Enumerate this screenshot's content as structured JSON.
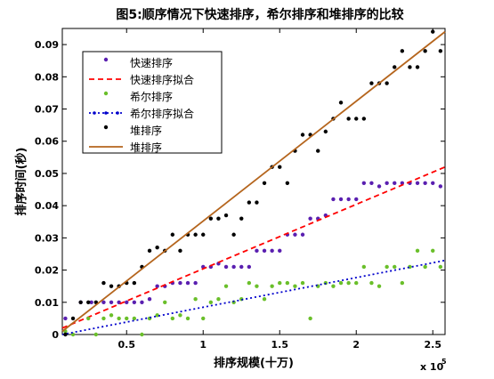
{
  "chart_data": {
    "type": "scatter",
    "title": "图5:顺序情况下快速排序，希尔排序和堆排序的比较",
    "xlabel": "排序规模(十万)",
    "ylabel": "排序时间(秒)",
    "x_exponent_label": "x 10",
    "x_exponent_power": "5",
    "xlim": [
      8000,
      258000
    ],
    "ylim": [
      0,
      0.095
    ],
    "xticks": [
      50000,
      100000,
      150000,
      200000,
      250000
    ],
    "xtick_labels": [
      "0.5",
      "1",
      "1.5",
      "2",
      "2.5"
    ],
    "yticks": [
      0,
      0.01,
      0.02,
      0.03,
      0.04,
      0.05,
      0.06,
      0.07,
      0.08,
      0.09
    ],
    "ytick_labels": [
      "0",
      "0.01",
      "0.02",
      "0.03",
      "0.04",
      "0.05",
      "0.06",
      "0.07",
      "0.08",
      "0.09"
    ],
    "legend_position": "top-left",
    "series": [
      {
        "name": "快速排序",
        "kind": "scatter",
        "color": "#5a1fb0",
        "points": [
          [
            10000,
            0.005
          ],
          [
            20000,
            0.01
          ],
          [
            27000,
            0.01
          ],
          [
            35000,
            0.01
          ],
          [
            40000,
            0.01
          ],
          [
            45000,
            0.01
          ],
          [
            50000,
            0.01
          ],
          [
            55000,
            0.01
          ],
          [
            60000,
            0.01
          ],
          [
            65000,
            0.011
          ],
          [
            70000,
            0.015
          ],
          [
            75000,
            0.015
          ],
          [
            80000,
            0.016
          ],
          [
            85000,
            0.016
          ],
          [
            90000,
            0.016
          ],
          [
            95000,
            0.016
          ],
          [
            100000,
            0.021
          ],
          [
            105000,
            0.021
          ],
          [
            110000,
            0.022
          ],
          [
            115000,
            0.021
          ],
          [
            120000,
            0.021
          ],
          [
            125000,
            0.021
          ],
          [
            130000,
            0.021
          ],
          [
            135000,
            0.026
          ],
          [
            140000,
            0.026
          ],
          [
            145000,
            0.026
          ],
          [
            150000,
            0.026
          ],
          [
            155000,
            0.031
          ],
          [
            160000,
            0.031
          ],
          [
            165000,
            0.031
          ],
          [
            170000,
            0.036
          ],
          [
            175000,
            0.036
          ],
          [
            180000,
            0.037
          ],
          [
            185000,
            0.042
          ],
          [
            190000,
            0.042
          ],
          [
            195000,
            0.042
          ],
          [
            200000,
            0.042
          ],
          [
            205000,
            0.047
          ],
          [
            210000,
            0.047
          ],
          [
            215000,
            0.046
          ],
          [
            220000,
            0.047
          ],
          [
            225000,
            0.047
          ],
          [
            230000,
            0.047
          ],
          [
            235000,
            0.047
          ],
          [
            240000,
            0.047
          ],
          [
            245000,
            0.047
          ],
          [
            250000,
            0.047
          ],
          [
            255000,
            0.046
          ]
        ]
      },
      {
        "name": "快速排序拟合",
        "kind": "fit",
        "color": "#ff0000",
        "dash": "6,4",
        "x0": 8000,
        "y0": 0.002,
        "x1": 258000,
        "y1": 0.052
      },
      {
        "name": "希尔排序",
        "kind": "scatter",
        "color": "#6abf2a",
        "points": [
          [
            10000,
            0.001
          ],
          [
            15000,
            0.0
          ],
          [
            25000,
            0.005
          ],
          [
            30000,
            0.0
          ],
          [
            35000,
            0.005
          ],
          [
            40000,
            0.006
          ],
          [
            45000,
            0.005
          ],
          [
            50000,
            0.005
          ],
          [
            55000,
            0.005
          ],
          [
            60000,
            0.0
          ],
          [
            65000,
            0.005
          ],
          [
            70000,
            0.006
          ],
          [
            75000,
            0.01
          ],
          [
            80000,
            0.005
          ],
          [
            85000,
            0.006
          ],
          [
            90000,
            0.005
          ],
          [
            95000,
            0.011
          ],
          [
            100000,
            0.005
          ],
          [
            105000,
            0.01
          ],
          [
            110000,
            0.011
          ],
          [
            115000,
            0.015
          ],
          [
            120000,
            0.01
          ],
          [
            125000,
            0.011
          ],
          [
            130000,
            0.016
          ],
          [
            135000,
            0.015
          ],
          [
            140000,
            0.011
          ],
          [
            145000,
            0.015
          ],
          [
            150000,
            0.016
          ],
          [
            155000,
            0.016
          ],
          [
            160000,
            0.015
          ],
          [
            165000,
            0.016
          ],
          [
            170000,
            0.005
          ],
          [
            175000,
            0.015
          ],
          [
            180000,
            0.016
          ],
          [
            185000,
            0.015
          ],
          [
            190000,
            0.016
          ],
          [
            195000,
            0.016
          ],
          [
            200000,
            0.016
          ],
          [
            205000,
            0.021
          ],
          [
            210000,
            0.016
          ],
          [
            215000,
            0.015
          ],
          [
            220000,
            0.021
          ],
          [
            225000,
            0.021
          ],
          [
            230000,
            0.016
          ],
          [
            235000,
            0.021
          ],
          [
            240000,
            0.026
          ],
          [
            245000,
            0.021
          ],
          [
            250000,
            0.026
          ],
          [
            255000,
            0.021
          ]
        ]
      },
      {
        "name": "希尔排序拟合",
        "kind": "fit",
        "color": "#0000cc",
        "dash": "2,3",
        "marker": "#0000cc",
        "x0": 8000,
        "y0": 0.0,
        "x1": 258000,
        "y1": 0.023
      },
      {
        "name": "堆排序",
        "kind": "scatter",
        "color": "#000000",
        "points": [
          [
            10000,
            0.0
          ],
          [
            15000,
            0.005
          ],
          [
            20000,
            0.01
          ],
          [
            25000,
            0.01
          ],
          [
            30000,
            0.01
          ],
          [
            35000,
            0.016
          ],
          [
            40000,
            0.015
          ],
          [
            45000,
            0.015
          ],
          [
            50000,
            0.016
          ],
          [
            55000,
            0.016
          ],
          [
            60000,
            0.021
          ],
          [
            65000,
            0.026
          ],
          [
            70000,
            0.027
          ],
          [
            75000,
            0.026
          ],
          [
            80000,
            0.031
          ],
          [
            85000,
            0.026
          ],
          [
            90000,
            0.031
          ],
          [
            95000,
            0.031
          ],
          [
            100000,
            0.031
          ],
          [
            105000,
            0.036
          ],
          [
            110000,
            0.036
          ],
          [
            115000,
            0.037
          ],
          [
            120000,
            0.031
          ],
          [
            125000,
            0.036
          ],
          [
            130000,
            0.041
          ],
          [
            135000,
            0.041
          ],
          [
            140000,
            0.047
          ],
          [
            145000,
            0.052
          ],
          [
            150000,
            0.052
          ],
          [
            155000,
            0.047
          ],
          [
            160000,
            0.057
          ],
          [
            165000,
            0.062
          ],
          [
            170000,
            0.062
          ],
          [
            175000,
            0.057
          ],
          [
            180000,
            0.063
          ],
          [
            185000,
            0.067
          ],
          [
            190000,
            0.072
          ],
          [
            195000,
            0.067
          ],
          [
            200000,
            0.067
          ],
          [
            205000,
            0.067
          ],
          [
            210000,
            0.078
          ],
          [
            215000,
            0.078
          ],
          [
            220000,
            0.078
          ],
          [
            225000,
            0.083
          ],
          [
            230000,
            0.088
          ],
          [
            235000,
            0.083
          ],
          [
            240000,
            0.083
          ],
          [
            245000,
            0.088
          ],
          [
            250000,
            0.094
          ],
          [
            255000,
            0.088
          ]
        ]
      },
      {
        "name": "堆排序",
        "kind": "fit",
        "color": "#b5651d",
        "dash": "",
        "x0": 8000,
        "y0": 0.001,
        "x1": 258000,
        "y1": 0.094
      }
    ]
  }
}
